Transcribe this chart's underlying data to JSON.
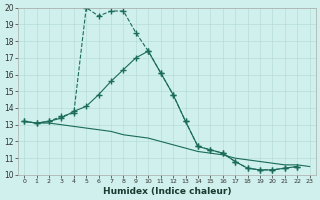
{
  "xlabel": "Humidex (Indice chaleur)",
  "background_color": "#cff0ec",
  "grid_color": "#b8dcd8",
  "line_color": "#1a6b5a",
  "xlim": [
    -0.5,
    23.5
  ],
  "ylim": [
    10,
    20
  ],
  "yticks": [
    10,
    11,
    12,
    13,
    14,
    15,
    16,
    17,
    18,
    19,
    20
  ],
  "xticks": [
    0,
    1,
    2,
    3,
    4,
    5,
    6,
    7,
    8,
    9,
    10,
    11,
    12,
    13,
    14,
    15,
    16,
    17,
    18,
    19,
    20,
    21,
    22,
    23
  ],
  "series1_x": [
    0,
    1,
    2,
    3,
    4,
    5,
    6,
    7,
    8,
    9,
    10,
    11,
    12,
    13,
    14,
    15,
    16,
    17,
    18,
    19,
    20,
    21,
    22
  ],
  "series1_y": [
    13.2,
    13.1,
    13.2,
    13.5,
    13.7,
    20.0,
    19.5,
    19.8,
    19.8,
    18.5,
    17.4,
    16.1,
    14.8,
    13.2,
    11.7,
    11.5,
    11.3,
    10.8,
    10.4,
    10.3,
    10.3,
    10.4,
    10.5
  ],
  "series2_x": [
    0,
    1,
    2,
    3,
    4,
    5,
    6,
    7,
    8,
    9,
    10,
    11,
    12,
    13,
    14,
    15,
    16,
    17,
    18,
    19,
    20,
    21,
    22
  ],
  "series2_y": [
    13.2,
    13.1,
    13.2,
    13.4,
    13.8,
    14.1,
    14.8,
    15.6,
    16.3,
    17.0,
    17.4,
    16.1,
    14.8,
    13.2,
    11.7,
    11.5,
    11.3,
    10.8,
    10.4,
    10.3,
    10.3,
    10.4,
    10.5
  ],
  "series3_x": [
    0,
    1,
    2,
    3,
    4,
    5,
    6,
    7,
    8,
    9,
    10,
    11,
    12,
    13,
    14,
    15,
    16,
    17,
    18,
    19,
    20,
    21,
    22,
    23
  ],
  "series3_y": [
    13.2,
    13.1,
    13.1,
    13.0,
    12.9,
    12.8,
    12.7,
    12.6,
    12.4,
    12.3,
    12.2,
    12.0,
    11.8,
    11.6,
    11.4,
    11.3,
    11.2,
    11.0,
    10.9,
    10.8,
    10.7,
    10.6,
    10.6,
    10.5
  ]
}
